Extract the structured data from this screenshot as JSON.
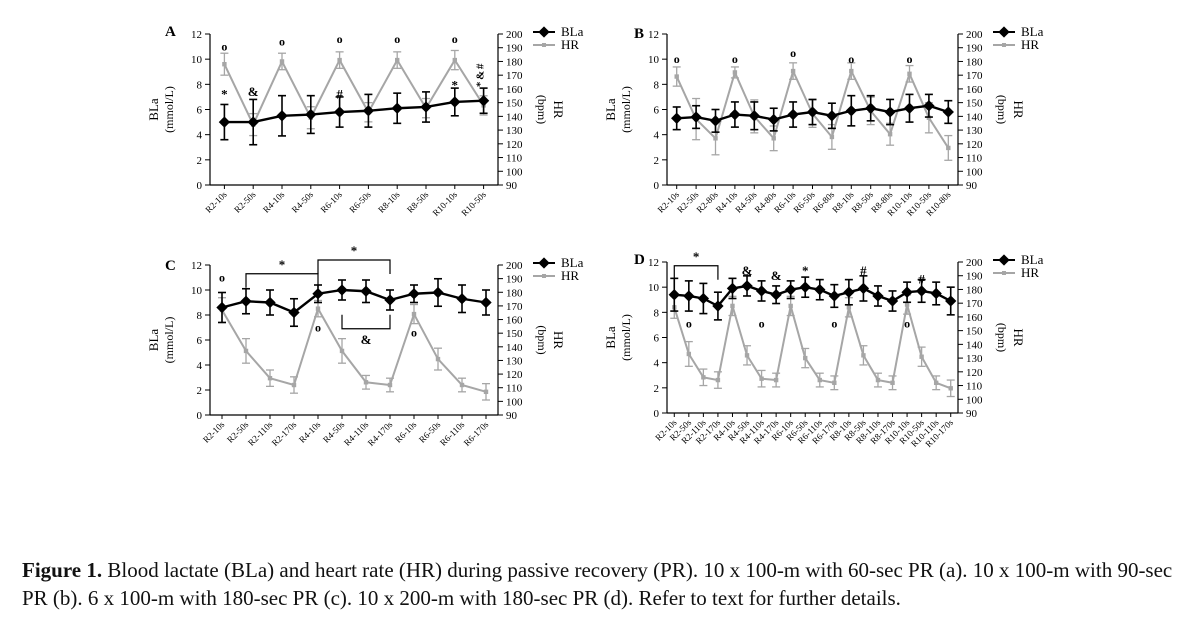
{
  "colors": {
    "bla": "#000000",
    "hr": "#a6a6a6",
    "axis": "#000000"
  },
  "caption": {
    "label": "Figure 1.",
    "text": "Blood lactate (BLa) and heart rate (HR) during passive recovery (PR). 10 x 100-m with 60-sec PR (a). 10 x 100-m with 90-sec PR (b). 6 x 100-m with 180-sec PR (c). 10 x 200-m with 180-sec PR (d). Refer to text for further details."
  },
  "chart_data": [
    {
      "panel": "A",
      "type": "line",
      "ylabel": "BLa",
      "yunit": "(mmol/L)",
      "ylim": [
        0,
        12
      ],
      "yticks": [
        0,
        2,
        4,
        6,
        8,
        10,
        12
      ],
      "y2label": "HR",
      "y2unit": "(bpm)",
      "y2lim": [
        90,
        200
      ],
      "y2ticks": [
        90,
        100,
        110,
        120,
        130,
        140,
        150,
        160,
        170,
        180,
        190,
        200
      ],
      "legend": [
        "BLa",
        "HR"
      ],
      "legend_position": "top-right",
      "categories": [
        "R2-10s",
        "R2-50s",
        "R4-10s",
        "R4-50s",
        "R6-10s",
        "R6-50s",
        "R8-10s",
        "R8-50s",
        "R10-10s",
        "R10-50s"
      ],
      "series": [
        {
          "name": "BLa",
          "axis": "left",
          "values": [
            5.0,
            5.0,
            5.5,
            5.6,
            5.8,
            5.9,
            6.1,
            6.2,
            6.6,
            6.7
          ],
          "errors": [
            1.4,
            1.8,
            1.6,
            1.5,
            1.2,
            1.3,
            1.2,
            1.2,
            1.1,
            1.0
          ]
        },
        {
          "name": "HR",
          "axis": "right",
          "values": [
            178,
            134,
            180,
            139,
            181,
            143,
            181,
            146,
            181,
            148
          ],
          "errors": [
            8,
            8,
            6,
            8,
            6,
            7,
            6,
            7,
            7,
            7
          ]
        }
      ],
      "annotations": [
        {
          "cat": 0,
          "text": "*",
          "level": 7.2
        },
        {
          "cat": 0,
          "text": "o",
          "level": 11.0
        },
        {
          "cat": 1,
          "text": "&",
          "level": 7.4
        },
        {
          "cat": 2,
          "text": "o",
          "level": 11.4
        },
        {
          "cat": 4,
          "text": "o",
          "level": 11.6
        },
        {
          "cat": 4,
          "text": "#",
          "level": 7.2
        },
        {
          "cat": 6,
          "text": "o",
          "level": 11.6
        },
        {
          "cat": 8,
          "text": "o",
          "level": 11.6
        },
        {
          "cat": 8,
          "text": "*",
          "level": 7.9
        },
        {
          "cat": 9,
          "text": "* & #",
          "level": 8.0
        }
      ],
      "brackets": []
    },
    {
      "panel": "B",
      "type": "line",
      "ylabel": "BLa",
      "yunit": "(mmol/L)",
      "ylim": [
        0,
        12
      ],
      "yticks": [
        0,
        2,
        4,
        6,
        8,
        10,
        12
      ],
      "y2label": "HR",
      "y2unit": "(bpm)",
      "y2lim": [
        90,
        200
      ],
      "y2ticks": [
        90,
        100,
        110,
        120,
        130,
        140,
        150,
        160,
        170,
        180,
        190,
        200
      ],
      "legend": [
        "BLa",
        "HR"
      ],
      "legend_position": "top-right",
      "categories": [
        "R2-10s",
        "R2-50s",
        "R2-80s",
        "R4-10s",
        "R4-50s",
        "R4-80s",
        "R6-10s",
        "R6-50s",
        "R6-80s",
        "R8-10s",
        "R8-50s",
        "R8-80s",
        "R10-10s",
        "R10-50s",
        "R10-80s"
      ],
      "series": [
        {
          "name": "BLa",
          "axis": "left",
          "values": [
            5.3,
            5.4,
            5.1,
            5.6,
            5.5,
            5.2,
            5.6,
            5.8,
            5.5,
            5.9,
            6.1,
            5.8,
            6.1,
            6.3,
            5.8
          ],
          "errors": [
            0.9,
            0.9,
            0.9,
            1.0,
            1.1,
            0.9,
            1.0,
            1.0,
            1.0,
            1.2,
            1.0,
            1.0,
            1.1,
            0.9,
            0.9
          ]
        },
        {
          "name": "HR",
          "axis": "right",
          "values": [
            169,
            138,
            124,
            172,
            140,
            124,
            173,
            142,
            125,
            173,
            144,
            127,
            171,
            139,
            117
          ],
          "errors": [
            7,
            15,
            12,
            4,
            12,
            9,
            6,
            10,
            9,
            6,
            10,
            8,
            6,
            11,
            9
          ]
        }
      ],
      "annotations": [
        {
          "cat": 0,
          "text": "o",
          "level": 10.0
        },
        {
          "cat": 3,
          "text": "o",
          "level": 10.0
        },
        {
          "cat": 6,
          "text": "o",
          "level": 10.5
        },
        {
          "cat": 9,
          "text": "o",
          "level": 10.0
        },
        {
          "cat": 12,
          "text": "o",
          "level": 10.0
        }
      ],
      "brackets": []
    },
    {
      "panel": "C",
      "type": "line",
      "ylabel": "BLa",
      "yunit": "(mmol/L)",
      "ylim": [
        0,
        12
      ],
      "yticks": [
        0,
        2,
        4,
        6,
        8,
        10,
        12
      ],
      "y2label": "HR",
      "y2unit": "(bpm)",
      "y2lim": [
        90,
        200
      ],
      "y2ticks": [
        90,
        100,
        110,
        120,
        130,
        140,
        150,
        160,
        170,
        180,
        190,
        200
      ],
      "legend": [
        "BLa",
        "HR"
      ],
      "legend_position": "top-right",
      "categories": [
        "R2-10s",
        "R2-50s",
        "R2-110s",
        "R2-170s",
        "R4-10s",
        "R4-50s",
        "R4-110s",
        "R4-170s",
        "R6-10s",
        "R6-50s",
        "R6-110s",
        "R6-170s"
      ],
      "series": [
        {
          "name": "BLa",
          "axis": "left",
          "values": [
            8.6,
            9.1,
            9.0,
            8.2,
            9.7,
            10.0,
            9.9,
            9.2,
            9.7,
            9.8,
            9.3,
            9.0
          ],
          "errors": [
            1.2,
            1.0,
            1.0,
            1.1,
            0.7,
            0.8,
            0.9,
            0.8,
            0.7,
            1.1,
            1.1,
            1.0
          ]
        },
        {
          "name": "HR",
          "axis": "right",
          "values": [
            167,
            137,
            117,
            112,
            168,
            137,
            114,
            112,
            164,
            131,
            112,
            107
          ],
          "errors": [
            9,
            9,
            6,
            6,
            6,
            9,
            5,
            5,
            7,
            8,
            5,
            6
          ]
        }
      ],
      "annotations": [
        {
          "cat": 0,
          "text": "o",
          "level": 11.0
        },
        {
          "cat": 4,
          "text": "o",
          "level": 7.0
        },
        {
          "cat": 8,
          "text": "o",
          "level": 6.6
        }
      ],
      "brackets": [
        {
          "from": 1,
          "to": 4,
          "text": "*",
          "level": 11.3,
          "dir": "down"
        },
        {
          "from": 4,
          "to": 7,
          "text": "*",
          "level": 12.4,
          "dir": "down"
        },
        {
          "from": 5,
          "to": 7,
          "text": "&",
          "level": 6.9,
          "dir": "up"
        }
      ]
    },
    {
      "panel": "D",
      "type": "line",
      "ylabel": "BLa",
      "yunit": "(mmol/L)",
      "ylim": [
        0,
        12
      ],
      "yticks": [
        0,
        2,
        4,
        6,
        8,
        10,
        12
      ],
      "y2label": "HR",
      "y2unit": "(bpm)",
      "y2lim": [
        90,
        200
      ],
      "y2ticks": [
        90,
        100,
        110,
        120,
        130,
        140,
        150,
        160,
        170,
        180,
        190,
        200
      ],
      "legend": [
        "BLa",
        "HR"
      ],
      "legend_position": "top-right",
      "categories": [
        "R2-10s",
        "R2-50s",
        "R2-110s",
        "R2-170s",
        "R4-10s",
        "R4-50s",
        "R4-110s",
        "R4-170s",
        "R6-10s",
        "R6-50s",
        "R6-110s",
        "R6-170s",
        "R8-10s",
        "R8-50s",
        "R8-110s",
        "R8-170s",
        "R10-10s",
        "R10-50s",
        "R10-110s",
        "R10-170s"
      ],
      "series": [
        {
          "name": "BLa",
          "axis": "left",
          "values": [
            9.4,
            9.3,
            9.1,
            8.5,
            9.9,
            10.1,
            9.7,
            9.4,
            9.8,
            10.0,
            9.8,
            9.3,
            9.6,
            9.9,
            9.3,
            8.9,
            9.6,
            9.7,
            9.5,
            8.9
          ],
          "errors": [
            1.3,
            1.2,
            1.2,
            1.1,
            0.8,
            0.8,
            0.8,
            0.7,
            0.7,
            0.8,
            0.8,
            0.9,
            1.0,
            1.0,
            0.8,
            0.8,
            0.8,
            0.9,
            0.9,
            1.1
          ]
        },
        {
          "name": "HR",
          "axis": "right",
          "values": [
            167,
            133,
            116,
            114,
            168,
            132,
            115,
            114,
            168,
            130,
            114,
            112,
            167,
            132,
            114,
            112,
            169,
            131,
            112,
            108
          ],
          "errors": [
            8,
            9,
            6,
            6,
            7,
            7,
            6,
            5,
            7,
            7,
            5,
            5,
            7,
            7,
            5,
            5,
            7,
            7,
            5,
            6
          ]
        }
      ],
      "annotations": [
        {
          "cat": 1,
          "text": "o",
          "level": 7.1
        },
        {
          "cat": 5,
          "text": "&",
          "level": 11.3
        },
        {
          "cat": 6,
          "text": "o",
          "level": 7.1
        },
        {
          "cat": 7,
          "text": "&",
          "level": 10.9
        },
        {
          "cat": 9,
          "text": "*",
          "level": 11.3
        },
        {
          "cat": 11,
          "text": "o",
          "level": 7.1
        },
        {
          "cat": 13,
          "text": "#",
          "level": 11.3
        },
        {
          "cat": 16,
          "text": "o",
          "level": 7.1
        },
        {
          "cat": 17,
          "text": "#",
          "level": 10.6
        }
      ],
      "brackets": [
        {
          "from": 0,
          "to": 3,
          "text": "*",
          "level": 11.7,
          "dir": "down"
        }
      ]
    }
  ]
}
